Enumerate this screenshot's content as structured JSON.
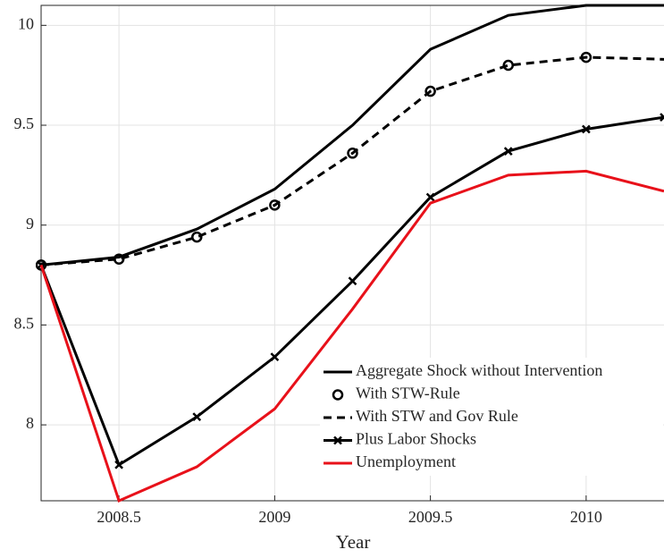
{
  "chart_data": {
    "type": "line",
    "xlabel": "Year",
    "x": [
      2008.25,
      2008.5,
      2008.75,
      2009,
      2009.25,
      2009.5,
      2009.75,
      2010,
      2010.25
    ],
    "xlim": [
      2008.25,
      2010.25
    ],
    "xticks": [
      2008.5,
      2009,
      2009.5,
      2010
    ],
    "ylim": [
      7.62,
      10.1
    ],
    "yticks": [
      8,
      8.5,
      9,
      9.5,
      10
    ],
    "grid": true,
    "series": [
      {
        "name": "Aggregate Shock without Intervention",
        "color": "#000000",
        "line_style": "solid",
        "marker": "none",
        "values": [
          8.8,
          8.84,
          8.98,
          9.18,
          9.5,
          9.88,
          10.05,
          10.1,
          10.1
        ]
      },
      {
        "name": "With STW-Rule",
        "color": "#000000",
        "line_style": "none",
        "marker": "o",
        "values": [
          8.8,
          8.83,
          8.94,
          9.1,
          9.36,
          9.67,
          9.8,
          9.84,
          null
        ]
      },
      {
        "name": "With STW and Gov Rule",
        "color": "#000000",
        "line_style": "dashed",
        "marker": "none",
        "values": [
          8.8,
          8.83,
          8.94,
          9.1,
          9.36,
          9.67,
          9.8,
          9.84,
          9.83
        ]
      },
      {
        "name": "Plus Labor Shocks",
        "color": "#000000",
        "line_style": "solid",
        "marker": "x",
        "values": [
          8.8,
          7.8,
          8.04,
          8.34,
          8.72,
          9.14,
          9.37,
          9.48,
          9.54
        ]
      },
      {
        "name": "Unemployment",
        "color": "#e8111a",
        "line_style": "solid",
        "marker": "none",
        "values": [
          8.8,
          7.62,
          7.79,
          8.08,
          8.58,
          9.11,
          9.25,
          9.27,
          9.17
        ]
      }
    ]
  }
}
